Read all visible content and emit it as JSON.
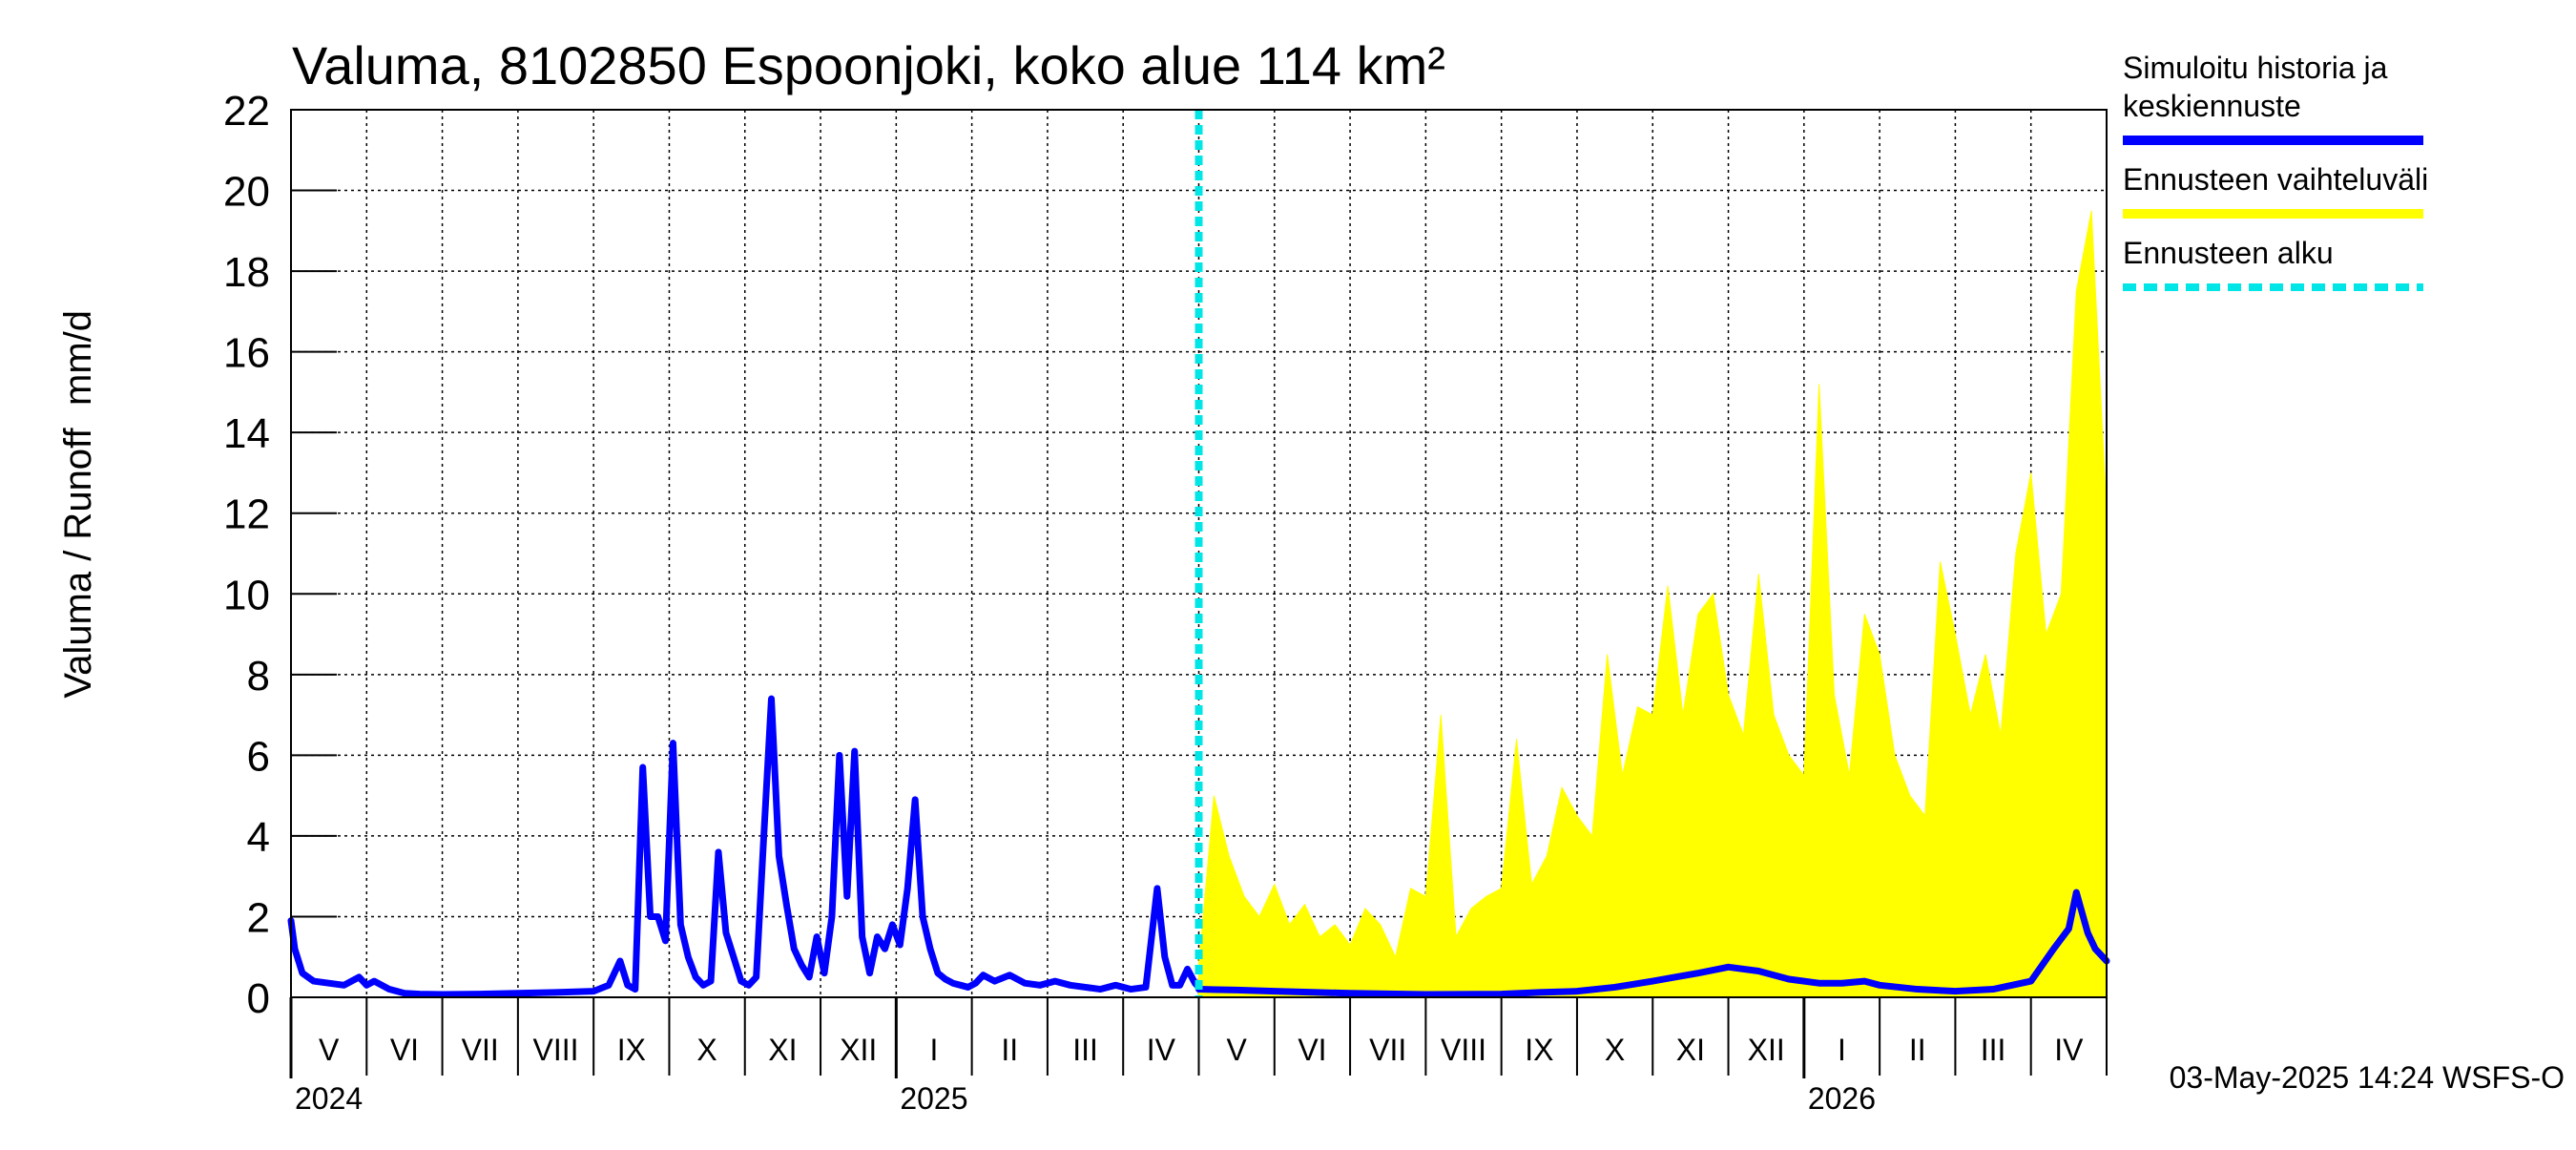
{
  "chart_data": {
    "type": "area",
    "title": "Valuma, 8102850 Espoonjoki, koko alue 114 km²",
    "ylabel_left": "Valuma / Runoff",
    "ylabel_unit": "mm/d",
    "ylim": [
      0,
      22
    ],
    "yticks": [
      "0",
      "2",
      "4",
      "6",
      "8",
      "10",
      "12",
      "14",
      "16",
      "18",
      "20",
      "22"
    ],
    "grid": true,
    "legend_position": "right",
    "legend": [
      {
        "lines": [
          "Simuloitu historia ja",
          "keskiennuste"
        ],
        "color": "#0000ff",
        "style": "solid"
      },
      {
        "lines": [
          "Ennusteen vaihteluväli"
        ],
        "color": "#ffff00",
        "style": "solid"
      },
      {
        "lines": [
          "Ennusteen alku"
        ],
        "color": "#00e5e5",
        "style": "dashed"
      }
    ],
    "months": [
      "V",
      "VI",
      "VII",
      "VIII",
      "IX",
      "X",
      "XI",
      "XII",
      "I",
      "II",
      "III",
      "IV",
      "V",
      "VI",
      "VII",
      "VIII",
      "IX",
      "X",
      "XI",
      "XII",
      "I",
      "II",
      "III",
      "IV"
    ],
    "years": [
      {
        "label": "2024",
        "month_index": 0
      },
      {
        "label": "2025",
        "month_index": 8
      },
      {
        "label": "2026",
        "month_index": 20
      }
    ],
    "forecast_start_month": 12.0,
    "x_unit": "months since start of May 2024",
    "series": [
      {
        "name": "Simuloitu historia ja keskiennuste",
        "color": "#0000ff",
        "x": [
          0.0,
          0.05,
          0.15,
          0.3,
          0.5,
          0.7,
          0.9,
          1.0,
          1.1,
          1.3,
          1.5,
          1.7,
          2.0,
          2.5,
          3.0,
          3.5,
          4.0,
          4.2,
          4.35,
          4.45,
          4.55,
          4.65,
          4.75,
          4.85,
          4.95,
          5.05,
          5.15,
          5.25,
          5.35,
          5.45,
          5.55,
          5.65,
          5.75,
          5.85,
          5.95,
          6.05,
          6.15,
          6.25,
          6.35,
          6.45,
          6.55,
          6.65,
          6.75,
          6.85,
          6.95,
          7.05,
          7.15,
          7.25,
          7.35,
          7.45,
          7.55,
          7.65,
          7.75,
          7.85,
          7.95,
          8.05,
          8.15,
          8.25,
          8.35,
          8.45,
          8.55,
          8.65,
          8.75,
          8.85,
          8.95,
          9.05,
          9.15,
          9.3,
          9.5,
          9.7,
          9.9,
          10.1,
          10.3,
          10.5,
          10.7,
          10.9,
          11.1,
          11.3,
          11.45,
          11.55,
          11.65,
          11.75,
          11.85,
          11.95,
          12.0
        ],
        "values": [
          1.9,
          1.2,
          0.6,
          0.4,
          0.35,
          0.3,
          0.5,
          0.3,
          0.4,
          0.2,
          0.1,
          0.08,
          0.07,
          0.08,
          0.1,
          0.12,
          0.15,
          0.3,
          0.9,
          0.3,
          0.2,
          5.7,
          2.0,
          2.0,
          1.4,
          6.3,
          1.8,
          1.0,
          0.5,
          0.3,
          0.4,
          3.6,
          1.6,
          1.0,
          0.4,
          0.3,
          0.5,
          4.0,
          7.4,
          3.5,
          2.3,
          1.2,
          0.8,
          0.5,
          1.5,
          0.6,
          2.0,
          6.0,
          2.5,
          6.1,
          1.5,
          0.6,
          1.5,
          1.2,
          1.8,
          1.3,
          2.7,
          4.9,
          2.0,
          1.2,
          0.6,
          0.45,
          0.35,
          0.3,
          0.25,
          0.35,
          0.55,
          0.4,
          0.55,
          0.35,
          0.3,
          0.4,
          0.3,
          0.25,
          0.2,
          0.3,
          0.2,
          0.25,
          2.7,
          1.0,
          0.3,
          0.3,
          0.7,
          0.35,
          0.25
        ]
      },
      {
        "name": "Keskiennuste",
        "color": "#0000ff",
        "x": [
          12.0,
          12.5,
          13.0,
          14.0,
          15.0,
          16.0,
          16.5,
          17.0,
          17.5,
          18.0,
          18.3,
          18.6,
          19.0,
          19.4,
          19.8,
          20.2,
          20.5,
          20.8,
          21.0,
          21.5,
          22.0,
          22.5,
          23.0,
          23.3,
          23.5,
          23.6,
          23.75,
          23.85,
          24.0
        ],
        "values": [
          0.2,
          0.18,
          0.15,
          0.1,
          0.07,
          0.08,
          0.12,
          0.15,
          0.25,
          0.4,
          0.5,
          0.6,
          0.75,
          0.65,
          0.45,
          0.35,
          0.35,
          0.4,
          0.3,
          0.2,
          0.15,
          0.2,
          0.4,
          1.2,
          1.7,
          2.6,
          1.6,
          1.2,
          0.9
        ]
      },
      {
        "name": "Ennusteen vaihteluväli",
        "color": "#ffff00",
        "x": [
          12.0,
          12.2,
          12.4,
          12.6,
          12.8,
          13.0,
          13.2,
          13.4,
          13.6,
          13.8,
          14.0,
          14.2,
          14.4,
          14.6,
          14.8,
          15.0,
          15.2,
          15.4,
          15.6,
          15.8,
          16.0,
          16.2,
          16.4,
          16.6,
          16.8,
          17.0,
          17.2,
          17.4,
          17.6,
          17.8,
          18.0,
          18.2,
          18.4,
          18.6,
          18.8,
          19.0,
          19.2,
          19.4,
          19.6,
          19.8,
          20.0,
          20.2,
          20.4,
          20.6,
          20.8,
          21.0,
          21.2,
          21.4,
          21.6,
          21.8,
          22.0,
          22.2,
          22.4,
          22.6,
          22.8,
          23.0,
          23.2,
          23.4,
          23.6,
          23.8,
          24.0
        ],
        "values": [
          0.8,
          5.0,
          3.5,
          2.5,
          2.0,
          2.8,
          1.8,
          2.3,
          1.5,
          1.8,
          1.3,
          2.2,
          1.8,
          1.0,
          2.7,
          2.5,
          7.0,
          1.5,
          2.2,
          2.5,
          2.7,
          6.4,
          2.8,
          3.5,
          5.2,
          4.5,
          4.0,
          8.5,
          5.5,
          7.2,
          7.0,
          10.2,
          7.0,
          9.5,
          10.0,
          7.5,
          6.5,
          10.5,
          7.0,
          6.0,
          5.5,
          15.2,
          7.5,
          5.5,
          9.5,
          8.5,
          6.0,
          5.0,
          4.5,
          10.8,
          9.0,
          7.0,
          8.5,
          6.5,
          11.0,
          13.0,
          9.0,
          10.0,
          17.5,
          19.5,
          12.0
        ]
      }
    ]
  },
  "footer_text": "03-May-2025 14:24 WSFS-O"
}
